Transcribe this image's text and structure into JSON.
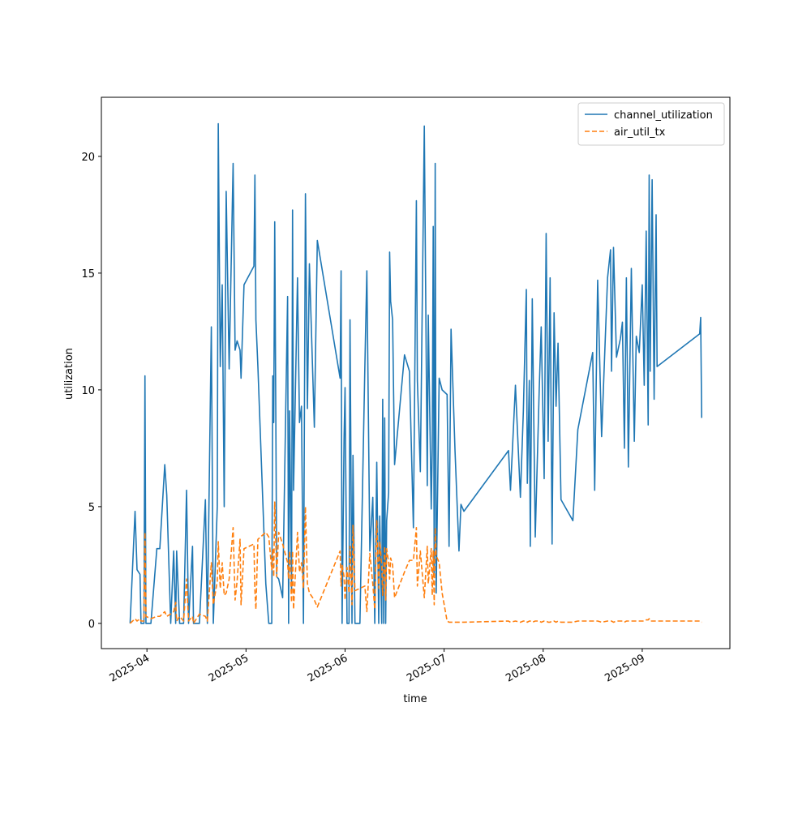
{
  "chart_data": {
    "type": "line",
    "xlabel": "time",
    "ylabel": "utilization",
    "x": [
      3.83,
      3.88,
      3.9,
      3.93,
      3.94,
      3.97,
      3.98,
      3.99,
      4.04,
      4.1,
      4.13,
      4.18,
      4.2,
      4.24,
      4.27,
      4.29,
      4.3,
      4.33,
      4.37,
      4.4,
      4.42,
      4.46,
      4.47,
      4.53,
      4.59,
      4.61,
      4.65,
      4.67,
      4.71,
      4.72,
      4.74,
      4.76,
      4.78,
      4.8,
      4.83,
      4.87,
      4.89,
      4.91,
      4.94,
      4.95,
      4.98,
      5.08,
      5.09,
      5.1,
      5.12,
      5.2,
      5.23,
      5.26,
      5.27,
      5.28,
      5.29,
      5.31,
      5.33,
      5.37,
      5.42,
      5.43,
      5.44,
      5.46,
      5.47,
      5.48,
      5.52,
      5.54,
      5.56,
      5.58,
      5.6,
      5.62,
      5.64,
      5.69,
      5.72,
      5.95,
      5.96,
      5.97,
      5.99,
      6.0,
      6.02,
      6.04,
      6.05,
      6.07,
      6.08,
      6.1,
      6.15,
      6.2,
      6.22,
      6.25,
      6.28,
      6.3,
      6.32,
      6.34,
      6.35,
      6.37,
      6.38,
      6.39,
      6.4,
      6.41,
      6.42,
      6.44,
      6.45,
      6.46,
      6.48,
      6.5,
      6.6,
      6.65,
      6.69,
      6.72,
      6.73,
      6.76,
      6.8,
      6.83,
      6.84,
      6.87,
      6.88,
      6.89,
      6.9,
      6.91,
      6.92,
      6.95,
      6.98,
      7.03,
      7.05,
      7.07,
      7.11,
      7.15,
      7.17,
      7.2,
      7.65,
      7.67,
      7.72,
      7.77,
      7.8,
      7.83,
      7.84,
      7.86,
      7.87,
      7.89,
      7.92,
      7.96,
      7.98,
      8.01,
      8.03,
      8.05,
      8.07,
      8.09,
      8.11,
      8.13,
      8.15,
      8.18,
      8.3,
      8.35,
      8.5,
      8.52,
      8.55,
      8.59,
      8.65,
      8.68,
      8.69,
      8.71,
      8.74,
      8.78,
      8.8,
      8.82,
      8.84,
      8.86,
      8.89,
      8.92,
      8.94,
      8.97,
      9.0,
      9.02,
      9.04,
      9.06,
      9.07,
      9.08,
      9.1,
      9.12,
      9.14,
      9.15,
      9.58,
      9.59,
      9.6
    ],
    "series": [
      {
        "name": "channel_utilization",
        "color": "#1f77b4",
        "linestyle": "solid",
        "values": [
          0,
          4.8,
          2.3,
          2.1,
          0,
          0,
          10.6,
          0,
          0,
          3.2,
          3.2,
          6.8,
          5.5,
          0,
          3.1,
          0,
          3.1,
          0,
          0,
          5.7,
          0,
          3.3,
          0,
          0,
          5.3,
          0,
          12.7,
          0,
          5.0,
          21.4,
          11.0,
          14.5,
          5.0,
          18.5,
          10.9,
          19.7,
          11.7,
          12.1,
          11.7,
          10.5,
          14.5,
          15.3,
          19.2,
          13.0,
          11.0,
          1.7,
          0,
          0,
          10.6,
          8.6,
          17.2,
          2.0,
          1.9,
          1.1,
          14.0,
          0,
          9.1,
          1.4,
          17.7,
          5.7,
          14.8,
          8.6,
          9.3,
          0,
          18.4,
          9.2,
          15.4,
          8.4,
          16.4,
          10.5,
          15.1,
          0,
          7.9,
          10.1,
          0,
          0,
          13.0,
          0,
          7.2,
          0,
          0,
          11.0,
          15.1,
          3.1,
          5.4,
          0,
          6.9,
          0,
          4.6,
          0,
          9.6,
          0,
          8.8,
          0,
          4.4,
          5.6,
          15.9,
          13.8,
          13.0,
          6.8,
          11.5,
          10.8,
          4.1,
          18.1,
          10.4,
          6.5,
          21.3,
          5.9,
          13.2,
          4.9,
          7.5,
          17.0,
          2.0,
          19.7,
          1.3,
          10.5,
          10.0,
          9.8,
          3.3,
          12.6,
          7.4,
          3.1,
          5.1,
          4.8,
          7.4,
          5.7,
          10.2,
          5.4,
          9.1,
          14.3,
          6.0,
          10.4,
          3.3,
          13.9,
          3.7,
          10.0,
          12.7,
          6.2,
          16.7,
          7.8,
          14.8,
          3.4,
          13.3,
          9.3,
          12.0,
          5.3,
          4.4,
          8.3,
          11.6,
          5.7,
          14.7,
          8.0,
          14.8,
          16.0,
          10.8,
          16.1,
          11.4,
          12.2,
          12.9,
          7.5,
          14.8,
          6.7,
          15.2,
          7.8,
          12.3,
          11.6,
          14.5,
          10.2,
          16.8,
          8.5,
          19.2,
          10.8,
          19.0,
          9.6,
          17.5,
          11.0,
          12.4,
          13.1,
          8.8
        ]
      },
      {
        "name": "air_util_tx",
        "color": "#ff7f0e",
        "linestyle": "dashed",
        "values": [
          0,
          0.2,
          0.1,
          0.2,
          0.1,
          0.1,
          3.9,
          0.3,
          0.2,
          0.3,
          0.3,
          0.5,
          0.3,
          0.4,
          0.5,
          0.9,
          0.1,
          0.3,
          0.1,
          1.9,
          0.1,
          0.3,
          0,
          0.4,
          0.3,
          0.1,
          2.6,
          0.8,
          1.8,
          3.5,
          1.5,
          2.6,
          1.2,
          1.3,
          1.9,
          4.1,
          1.0,
          1.8,
          3.6,
          0.8,
          3.2,
          3.4,
          1.4,
          0.6,
          3.6,
          3.9,
          3.7,
          2.3,
          3.2,
          2.0,
          5.2,
          2.0,
          3.9,
          3.4,
          2.6,
          1.9,
          3.1,
          0.9,
          3.1,
          0.6,
          3.9,
          2.2,
          2.6,
          1.5,
          5.0,
          1.7,
          1.3,
          1.0,
          0.7,
          3.1,
          1.6,
          2.5,
          2.0,
          1.0,
          2.4,
          1.3,
          3.3,
          0.8,
          4.2,
          1.4,
          1.5,
          1.6,
          0.5,
          3.0,
          1.7,
          0.6,
          4.4,
          1.5,
          3.5,
          2.5,
          1.2,
          2.2,
          3.3,
          1.0,
          3.2,
          2.6,
          1.9,
          2.8,
          2.5,
          1.1,
          2.2,
          2.7,
          2.7,
          4.1,
          1.6,
          3.1,
          1.1,
          3.3,
          1.7,
          3.2,
          1.2,
          3.1,
          0.8,
          4.1,
          2.9,
          2.6,
          1.3,
          0.1,
          0.05,
          0.05,
          0.05,
          0.05,
          0.05,
          0.05,
          0.1,
          0.05,
          0.1,
          0.05,
          0.1,
          0.1,
          0.05,
          0.1,
          0.1,
          0.05,
          0.1,
          0.1,
          0.05,
          0.1,
          0.1,
          0.05,
          0.05,
          0.1,
          0.1,
          0.05,
          0.1,
          0.05,
          0.05,
          0.1,
          0.1,
          0.1,
          0.1,
          0.05,
          0.1,
          0.1,
          0.1,
          0.05,
          0.1,
          0.1,
          0.1,
          0.05,
          0.1,
          0.1,
          0.1,
          0.1,
          0.1,
          0.1,
          0.1,
          0.1,
          0.15,
          0.15,
          0.2,
          0.1,
          0.1,
          0.1,
          0.1,
          0.1,
          0.1,
          0.05,
          0.05
        ]
      }
    ],
    "xlim": [
      3.54,
      9.885
    ],
    "xticks": [
      {
        "value": 4,
        "label": "2025-04"
      },
      {
        "value": 5,
        "label": "2025-05"
      },
      {
        "value": 6,
        "label": "2025-06"
      },
      {
        "value": 7,
        "label": "2025-07"
      },
      {
        "value": 8,
        "label": "2025-08"
      },
      {
        "value": 9,
        "label": "2025-09"
      }
    ],
    "ylim": [
      -1.08,
      22.53
    ],
    "yticks": [
      0,
      5,
      10,
      15,
      20
    ],
    "legend": "upper right"
  }
}
